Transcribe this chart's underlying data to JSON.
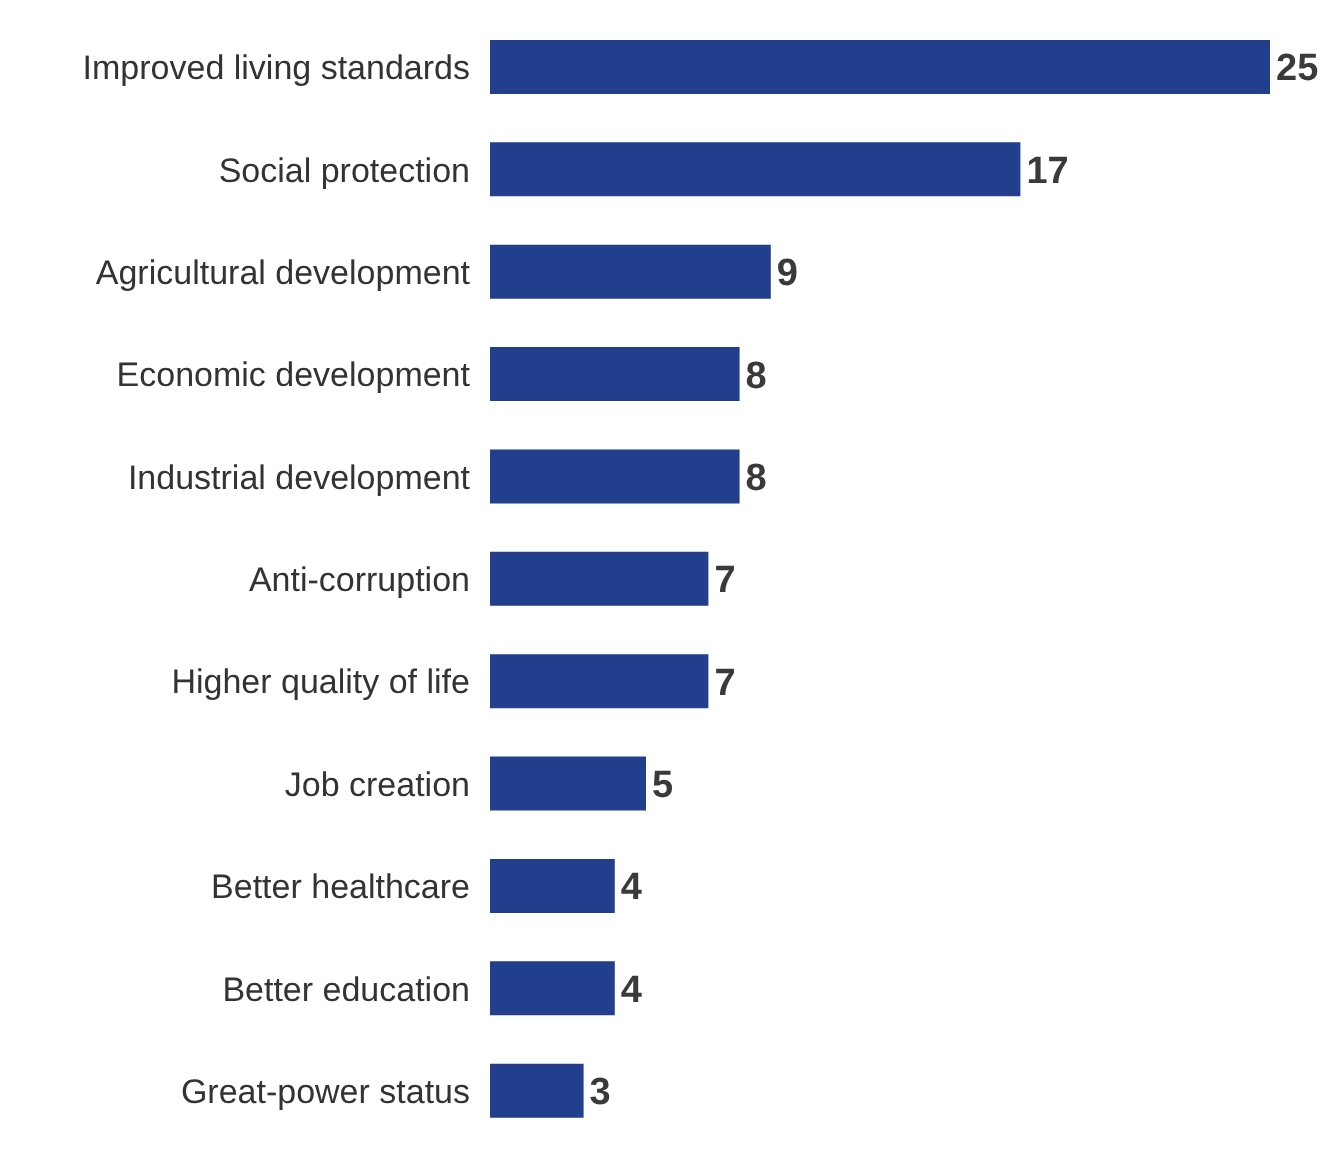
{
  "chart_data": {
    "type": "bar",
    "orientation": "horizontal",
    "categories": [
      "Improved living standards",
      "Social protection",
      "Agricultural development",
      "Economic development",
      "Industrial development",
      "Anti-corruption",
      "Higher quality of life",
      "Job creation",
      "Better healthcare",
      "Better education",
      "Great-power status"
    ],
    "values": [
      25,
      17,
      9,
      8,
      8,
      7,
      7,
      5,
      4,
      4,
      3
    ],
    "color": "#213f8c",
    "data_labels": true
  }
}
